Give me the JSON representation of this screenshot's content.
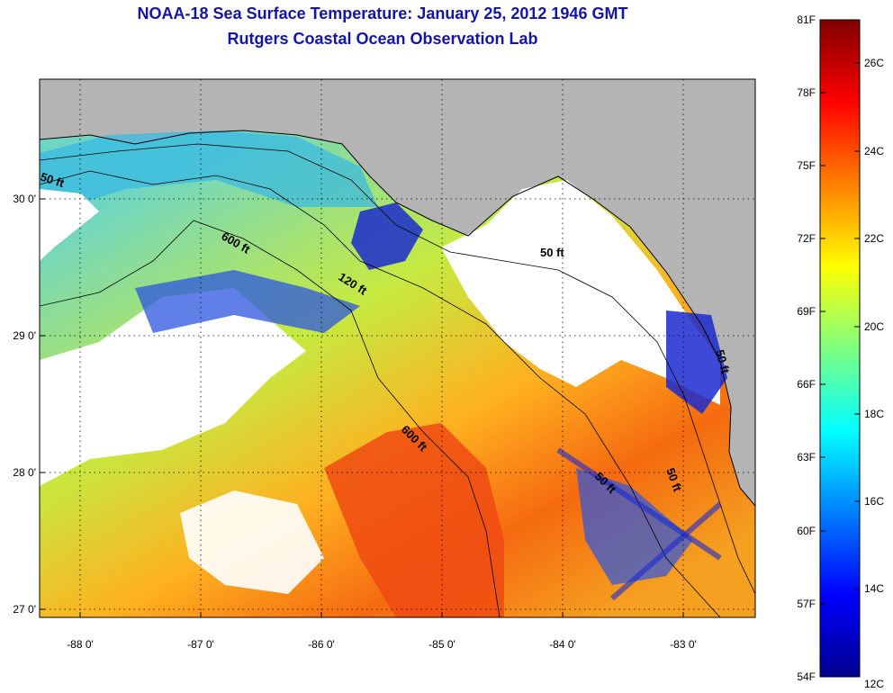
{
  "title": "NOAA-18 Sea Surface Temperature:  January 25, 2012 1946 GMT",
  "subtitle": "Rutgers Coastal Ocean Observation Lab",
  "map": {
    "lon_labels": [
      "-88 0'",
      "-87 0'",
      "-86 0'",
      "-85 0'",
      "-84 0'",
      "-83 0'"
    ],
    "lat_labels": [
      "30 0'",
      "29 0'",
      "28 0'",
      "27 0'"
    ],
    "contour_labels": [
      "50 ft",
      "600 ft",
      "120 ft",
      "50 ft",
      "600 ft",
      "50 ft",
      "50 ft",
      "50 ft"
    ],
    "colors": {
      "land": "#b4b4b4",
      "no_data": "#ffffff",
      "frame": "#000000"
    }
  },
  "colorbar": {
    "fahrenheit": [
      "81F",
      "78F",
      "75F",
      "72F",
      "69F",
      "66F",
      "63F",
      "60F",
      "57F",
      "54F"
    ],
    "celsius": [
      "26C",
      "24C",
      "22C",
      "20C",
      "18C",
      "16C",
      "14C",
      "12C"
    ],
    "range_f": [
      54,
      81
    ],
    "colormap": "jet"
  }
}
